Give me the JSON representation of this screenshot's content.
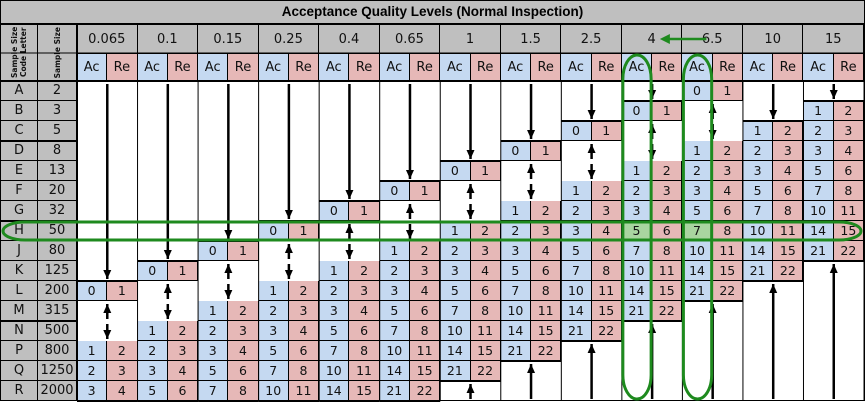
{
  "title": "Acceptance Quality Levels (Normal Inspection)",
  "row_headers": {
    "code_letter": "Sample Size Code Letter",
    "sample_size": "Sample Size"
  },
  "aql_levels": [
    "0.065",
    "0.1",
    "0.15",
    "0.25",
    "0.4",
    "0.65",
    "1",
    "1.5",
    "2.5",
    "4",
    "6.5",
    "10",
    "15"
  ],
  "ac_label": "Ac",
  "re_label": "Re",
  "rows": [
    {
      "letter": "A",
      "size": "2"
    },
    {
      "letter": "B",
      "size": "3"
    },
    {
      "letter": "C",
      "size": "5"
    },
    {
      "letter": "D",
      "size": "8"
    },
    {
      "letter": "E",
      "size": "13"
    },
    {
      "letter": "F",
      "size": "20"
    },
    {
      "letter": "G",
      "size": "32"
    },
    {
      "letter": "H",
      "size": "50"
    },
    {
      "letter": "J",
      "size": "80"
    },
    {
      "letter": "K",
      "size": "125"
    },
    {
      "letter": "L",
      "size": "200"
    },
    {
      "letter": "M",
      "size": "315"
    },
    {
      "letter": "N",
      "size": "500"
    },
    {
      "letter": "P",
      "size": "800"
    },
    {
      "letter": "Q",
      "size": "1250"
    },
    {
      "letter": "R",
      "size": "2000"
    }
  ],
  "cells": [
    [
      "v",
      "v",
      "v",
      "v",
      "v",
      "v",
      "v",
      "v",
      "v",
      "v",
      [
        "0",
        "1"
      ],
      "v",
      "v"
    ],
    [
      "v",
      "v",
      "v",
      "v",
      "v",
      "v",
      "v",
      "v",
      "v",
      [
        "0",
        "1"
      ],
      "^",
      "v",
      [
        "1",
        "2"
      ]
    ],
    [
      "v",
      "v",
      "v",
      "v",
      "v",
      "v",
      "v",
      "v",
      [
        "0",
        "1"
      ],
      "^",
      "v",
      [
        "1",
        "2"
      ],
      [
        "2",
        "3"
      ]
    ],
    [
      "v",
      "v",
      "v",
      "v",
      "v",
      "v",
      "v",
      [
        "0",
        "1"
      ],
      "^",
      "v",
      [
        "1",
        "2"
      ],
      [
        "2",
        "3"
      ],
      [
        "3",
        "4"
      ]
    ],
    [
      "v",
      "v",
      "v",
      "v",
      "v",
      "v",
      [
        "0",
        "1"
      ],
      "^",
      "v",
      [
        "1",
        "2"
      ],
      [
        "2",
        "3"
      ],
      [
        "3",
        "4"
      ],
      [
        "5",
        "6"
      ]
    ],
    [
      "v",
      "v",
      "v",
      "v",
      "v",
      [
        "0",
        "1"
      ],
      "^",
      "v",
      [
        "1",
        "2"
      ],
      [
        "2",
        "3"
      ],
      [
        "3",
        "4"
      ],
      [
        "5",
        "6"
      ],
      [
        "7",
        "8"
      ]
    ],
    [
      "v",
      "v",
      "v",
      "v",
      [
        "0",
        "1"
      ],
      "^",
      "v",
      [
        "1",
        "2"
      ],
      [
        "2",
        "3"
      ],
      [
        "3",
        "4"
      ],
      [
        "5",
        "6"
      ],
      [
        "7",
        "8"
      ],
      [
        "10",
        "11"
      ]
    ],
    [
      "v",
      "v",
      "v",
      [
        "0",
        "1"
      ],
      "^",
      "v",
      [
        "1",
        "2"
      ],
      [
        "2",
        "3"
      ],
      [
        "3",
        "4"
      ],
      [
        "5",
        "6"
      ],
      [
        "7",
        "8"
      ],
      [
        "10",
        "11"
      ],
      [
        "14",
        "15"
      ]
    ],
    [
      "v",
      "v",
      [
        "0",
        "1"
      ],
      "^",
      "v",
      [
        "1",
        "2"
      ],
      [
        "2",
        "3"
      ],
      [
        "3",
        "4"
      ],
      [
        "5",
        "6"
      ],
      [
        "7",
        "8"
      ],
      [
        "10",
        "11"
      ],
      [
        "14",
        "15"
      ],
      [
        "21",
        "22"
      ]
    ],
    [
      "v",
      [
        "0",
        "1"
      ],
      "^",
      "v",
      [
        "1",
        "2"
      ],
      [
        "2",
        "3"
      ],
      [
        "3",
        "4"
      ],
      [
        "5",
        "6"
      ],
      [
        "7",
        "8"
      ],
      [
        "10",
        "11"
      ],
      [
        "14",
        "15"
      ],
      [
        "21",
        "22"
      ],
      "^"
    ],
    [
      [
        "0",
        "1"
      ],
      "^",
      "v",
      [
        "1",
        "2"
      ],
      [
        "2",
        "3"
      ],
      [
        "3",
        "4"
      ],
      [
        "5",
        "6"
      ],
      [
        "7",
        "8"
      ],
      [
        "10",
        "11"
      ],
      [
        "14",
        "15"
      ],
      [
        "21",
        "22"
      ],
      "^",
      "^"
    ],
    [
      "^",
      "v",
      [
        "1",
        "2"
      ],
      [
        "2",
        "3"
      ],
      [
        "3",
        "4"
      ],
      [
        "5",
        "6"
      ],
      [
        "7",
        "8"
      ],
      [
        "10",
        "11"
      ],
      [
        "14",
        "15"
      ],
      [
        "21",
        "22"
      ],
      "^",
      "^",
      "^"
    ],
    [
      "v",
      [
        "1",
        "2"
      ],
      [
        "2",
        "3"
      ],
      [
        "3",
        "4"
      ],
      [
        "5",
        "6"
      ],
      [
        "7",
        "8"
      ],
      [
        "10",
        "11"
      ],
      [
        "14",
        "15"
      ],
      [
        "21",
        "22"
      ],
      "^",
      "^",
      "^",
      "^"
    ],
    [
      [
        "1",
        "2"
      ],
      [
        "2",
        "3"
      ],
      [
        "3",
        "4"
      ],
      [
        "5",
        "6"
      ],
      [
        "7",
        "8"
      ],
      [
        "10",
        "11"
      ],
      [
        "14",
        "15"
      ],
      [
        "21",
        "22"
      ],
      "^",
      "^",
      "^",
      "^",
      "^"
    ],
    [
      [
        "2",
        "3"
      ],
      [
        "3",
        "4"
      ],
      [
        "5",
        "6"
      ],
      [
        "7",
        "8"
      ],
      [
        "10",
        "11"
      ],
      [
        "14",
        "15"
      ],
      [
        "21",
        "22"
      ],
      "^",
      "^",
      "^",
      "^",
      "^",
      "^"
    ],
    [
      [
        "3",
        "4"
      ],
      [
        "5",
        "6"
      ],
      [
        "7",
        "8"
      ],
      [
        "10",
        "11"
      ],
      [
        "14",
        "15"
      ],
      [
        "21",
        "22"
      ],
      "^",
      "^",
      "^",
      "^",
      "^",
      "^",
      "^"
    ]
  ],
  "annotations": {
    "arrow_label": "6.5 → 4",
    "highlight_row": "H",
    "highlight_columns": [
      "4",
      "6.5"
    ],
    "highlighted_values": [
      "5",
      "7"
    ]
  },
  "colors": {
    "header_bg": "#bfbfbf",
    "ac_bg": "#c5d9f1",
    "re_bg": "#e6b8b7",
    "highlight_bg": "#a9d5a0",
    "annotation": "#1e8a1e"
  }
}
